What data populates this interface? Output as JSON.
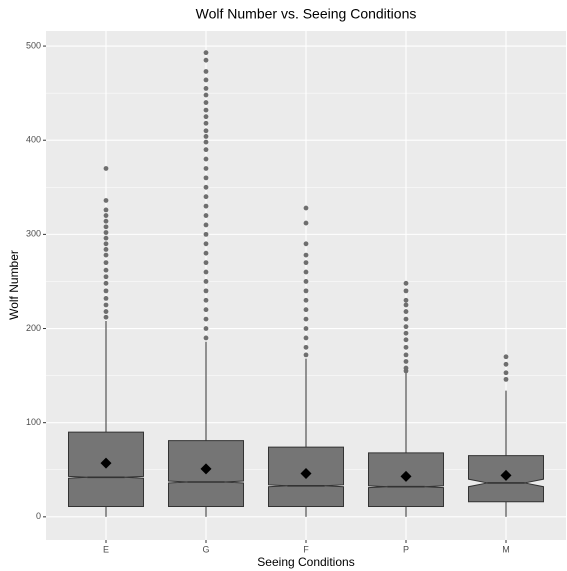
{
  "chart_data": {
    "type": "boxplot",
    "title": "Wolf Number vs. Seeing Conditions",
    "x_label": "Seeing Conditions",
    "y_label": "Wolf Number",
    "categories": [
      "E",
      "G",
      "F",
      "P",
      "M"
    ],
    "ylim": [
      -24.6,
      516
    ],
    "yticks": [
      0,
      100,
      200,
      300,
      400,
      500
    ],
    "minor_yticks": [
      50,
      150,
      250,
      350,
      450
    ],
    "grid": true,
    "box_color": "#757575",
    "outline_color": "#333333",
    "outlier_color": "#6e6e6e",
    "mean_color": "#000000",
    "boxes": [
      {
        "min": 0,
        "q1": 11,
        "median": 42,
        "q3": 90,
        "max": 208,
        "mean": 57,
        "notch": [
          41,
          43
        ],
        "outliers": [
          370,
          336,
          326,
          320,
          314,
          308,
          302,
          296,
          290,
          284,
          278,
          270,
          262,
          255,
          248,
          240,
          232,
          225,
          218,
          212
        ]
      },
      {
        "min": 0,
        "q1": 11,
        "median": 37,
        "q3": 81,
        "max": 186,
        "mean": 51,
        "notch": [
          36,
          38
        ],
        "outliers": [
          493,
          485,
          473,
          464,
          455,
          448,
          440,
          432,
          425,
          418,
          410,
          404,
          398,
          390,
          380,
          370,
          360,
          350,
          340,
          330,
          320,
          310,
          300,
          290,
          280,
          270,
          260,
          250,
          240,
          230,
          220,
          210,
          200,
          190
        ]
      },
      {
        "min": 0,
        "q1": 11,
        "median": 33,
        "q3": 74,
        "max": 168,
        "mean": 46,
        "notch": [
          32,
          34
        ],
        "outliers": [
          328,
          312,
          290,
          278,
          270,
          260,
          250,
          240,
          230,
          220,
          210,
          200,
          190,
          180,
          172
        ]
      },
      {
        "min": 0,
        "q1": 11,
        "median": 32,
        "q3": 68,
        "max": 153,
        "mean": 43,
        "notch": [
          31,
          33
        ],
        "outliers": [
          248,
          240,
          230,
          225,
          218,
          210,
          202,
          195,
          188,
          180,
          172,
          165,
          158,
          155
        ]
      },
      {
        "min": 0,
        "q1": 16,
        "median": 36,
        "q3": 65,
        "max": 134,
        "mean": 44,
        "notch": [
          32,
          40
        ],
        "outliers": [
          170,
          162,
          153,
          146
        ]
      }
    ]
  }
}
